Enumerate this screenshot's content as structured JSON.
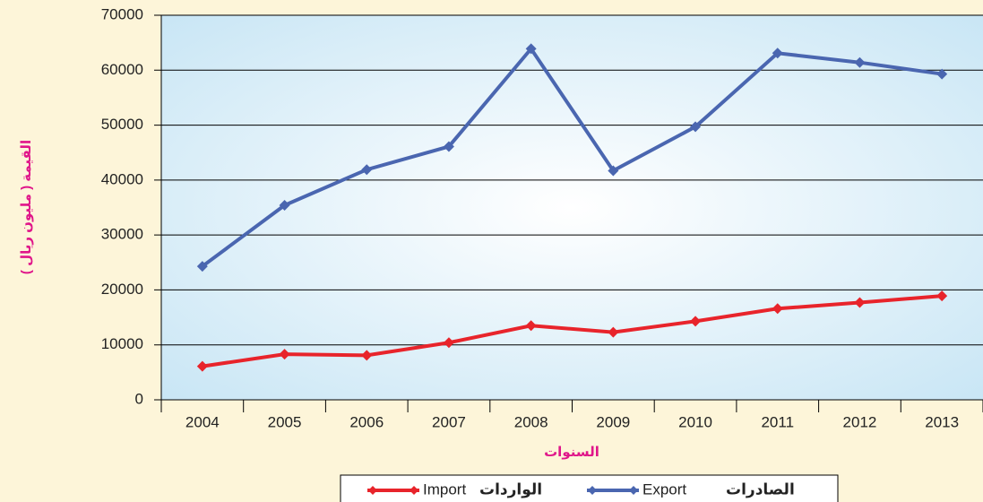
{
  "chart_data": {
    "type": "line",
    "y_label": "القيمة ( مليون ريال )",
    "x_label": "السنوات",
    "categories": [
      "2004",
      "2005",
      "2006",
      "2007",
      "2008",
      "2009",
      "2010",
      "2011",
      "2012",
      "2013"
    ],
    "series": [
      {
        "name": "Export",
        "label_ar": "الصادرات",
        "color": "#4a66b0",
        "values": [
          24300,
          35400,
          41900,
          46100,
          63900,
          41700,
          49700,
          63100,
          61400,
          59300
        ]
      },
      {
        "name": "Import",
        "label_ar": "الواردات",
        "color": "#e8242b",
        "values": [
          6100,
          8300,
          8100,
          10400,
          13500,
          12300,
          14300,
          16600,
          17700,
          18900
        ]
      }
    ],
    "ylim": [
      0,
      70000
    ],
    "yticks": [
      0,
      10000,
      20000,
      30000,
      40000,
      50000,
      60000,
      70000
    ],
    "grid": true
  }
}
